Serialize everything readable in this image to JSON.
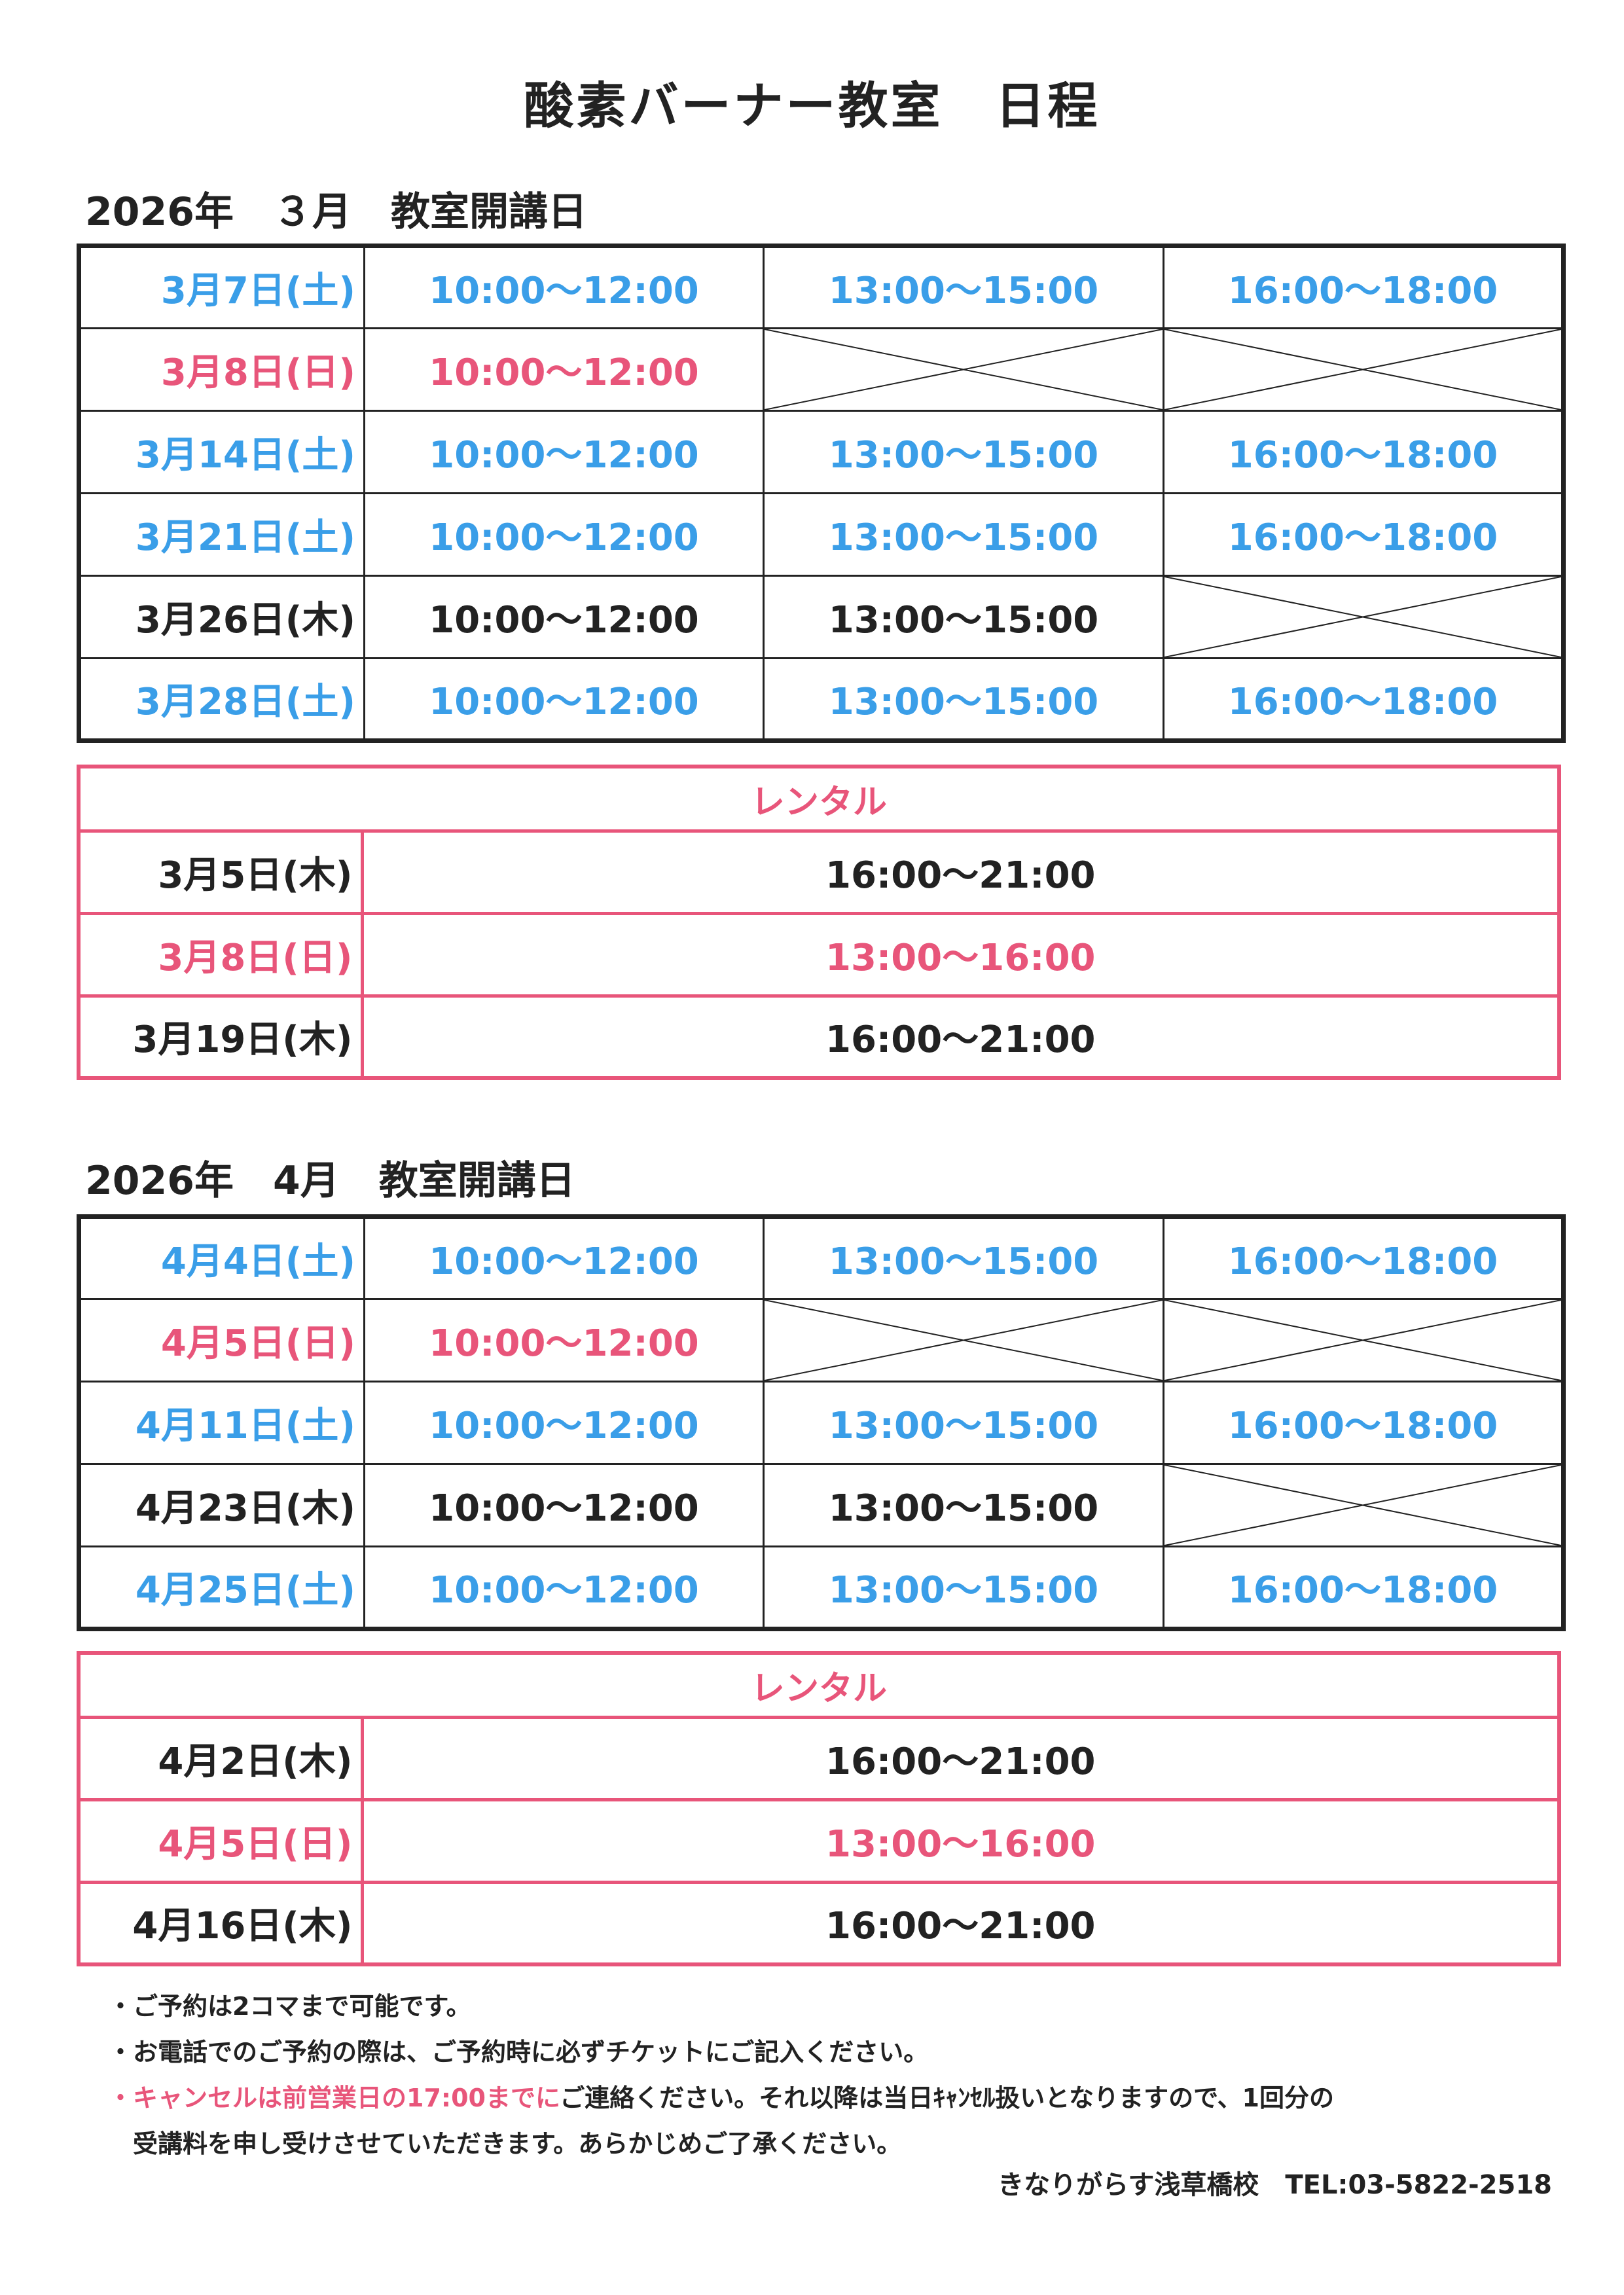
{
  "title": "酸素バーナー教室　日程",
  "colors": {
    "weekday": "#222222",
    "saturday": "#3a9ee8",
    "sunday": "#e8557a",
    "rental_border": "#e8557a"
  },
  "months": [
    {
      "heading": "2026年　３月　教室開講日",
      "schedule": [
        {
          "date": "3月7日(土)",
          "color": "blue",
          "slots": [
            "10:00～12:00",
            "13:00～15:00",
            "16:00～18:00"
          ]
        },
        {
          "date": "3月8日(日)",
          "color": "pink",
          "slots": [
            "10:00～12:00",
            null,
            null
          ]
        },
        {
          "date": "3月14日(土)",
          "color": "blue",
          "slots": [
            "10:00～12:00",
            "13:00～15:00",
            "16:00～18:00"
          ]
        },
        {
          "date": "3月21日(土)",
          "color": "blue",
          "slots": [
            "10:00～12:00",
            "13:00～15:00",
            "16:00～18:00"
          ]
        },
        {
          "date": "3月26日(木)",
          "color": "black",
          "slots": [
            "10:00～12:00",
            "13:00～15:00",
            null
          ]
        },
        {
          "date": "3月28日(土)",
          "color": "blue",
          "slots": [
            "10:00～12:00",
            "13:00～15:00",
            "16:00～18:00"
          ]
        }
      ],
      "rental_title": "レンタル",
      "rental": [
        {
          "date": "3月5日(木)",
          "color": "black",
          "time": "16:00～21:00"
        },
        {
          "date": "3月8日(日)",
          "color": "pink",
          "time": "13:00～16:00"
        },
        {
          "date": "3月19日(木)",
          "color": "black",
          "time": "16:00～21:00"
        }
      ]
    },
    {
      "heading": "2026年　4月　教室開講日",
      "schedule": [
        {
          "date": "4月4日(土)",
          "color": "blue",
          "slots": [
            "10:00～12:00",
            "13:00～15:00",
            "16:00～18:00"
          ]
        },
        {
          "date": "4月5日(日)",
          "color": "pink",
          "slots": [
            "10:00～12:00",
            null,
            null
          ]
        },
        {
          "date": "4月11日(土)",
          "color": "blue",
          "slots": [
            "10:00～12:00",
            "13:00～15:00",
            "16:00～18:00"
          ]
        },
        {
          "date": "4月23日(木)",
          "color": "black",
          "slots": [
            "10:00～12:00",
            "13:00～15:00",
            null
          ]
        },
        {
          "date": "4月25日(土)",
          "color": "blue",
          "slots": [
            "10:00～12:00",
            "13:00～15:00",
            "16:00～18:00"
          ]
        }
      ],
      "rental_title": "レンタル",
      "rental": [
        {
          "date": "4月2日(木)",
          "color": "black",
          "time": "16:00～21:00"
        },
        {
          "date": "4月5日(日)",
          "color": "pink",
          "time": "13:00～16:00"
        },
        {
          "date": "4月16日(木)",
          "color": "black",
          "time": "16:00～21:00"
        }
      ]
    }
  ],
  "notes": {
    "n1": "・ご予約は2コマまで可能です。",
    "n2": "・お電話でのご予約の際は、ご予約時に必ずチケットにご記入ください。",
    "n3_bullet": "・",
    "n3_pink": "キャンセルは前営業日の17:00までに",
    "n3_rest": "ご連絡ください。それ以降は当日ｷｬﾝｾﾙ扱いとなりますので、1回分の",
    "n4": "　受講料を申し受けさせていただきます。あらかじめご了承ください。"
  },
  "footer": "きなりがらす浅草橋校　TEL:03-5822-2518"
}
